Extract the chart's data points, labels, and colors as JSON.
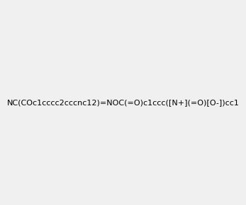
{
  "smiles": "NC(=NO C(=O)c1ccc([N+](=O)[O-])cc1)COc1cccc2cccnc12",
  "smiles_correct": "NC(COc1cccc2cccnc12)=NOC(=O)c1ccc([N+](=O)[O-])cc1",
  "title": "",
  "bg_color": "#f0f0f0",
  "img_size": [
    300,
    300
  ]
}
